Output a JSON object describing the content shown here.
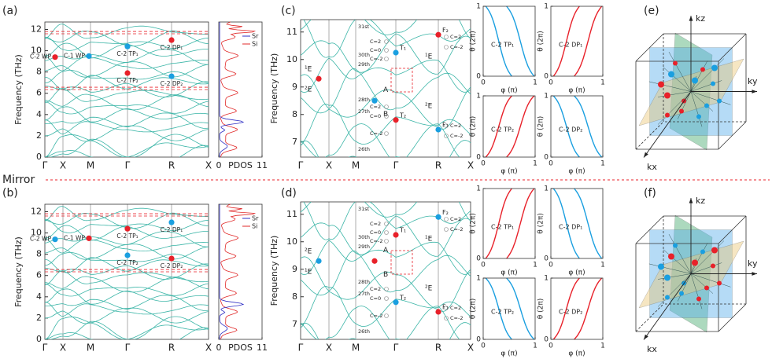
{
  "mirror": "Mirror",
  "panels": [
    {
      "label": "(a)",
      "band_structure": {
        "ylabel": "Frequency (THz)",
        "ylim": [
          0,
          12.7
        ],
        "yticks": [
          0,
          2,
          4,
          6,
          8,
          10,
          12
        ],
        "kpath": [
          "Γ",
          "X",
          "M",
          "Γ",
          "R",
          "X"
        ],
        "nodes": [
          {
            "label": "C-2 WP",
            "freq": 9.4,
            "color": "#e8212a"
          },
          {
            "label": "C-1 WP",
            "freq": 9.5,
            "color": "#1a9fe0"
          },
          {
            "label": "C-2 TP₁",
            "freq": 10.4,
            "color": "#1a9fe0"
          },
          {
            "label": "C-2 TP₂",
            "freq": 7.9,
            "color": "#e8212a"
          },
          {
            "label": "C-2 DP₁",
            "freq": 11.0,
            "color": "#e8212a"
          },
          {
            "label": "C-2 DP₂",
            "freq": 7.6,
            "color": "#1a9fe0"
          }
        ]
      },
      "pdos": {
        "xlabel": "PDOS",
        "xticks": [
          0,
          11
        ],
        "legend": [
          {
            "name": "Sr",
            "color": "#2e2ec4"
          },
          {
            "name": "Si",
            "color": "#e02828"
          }
        ]
      }
    },
    {
      "label": "(c)",
      "band_structure": {
        "ylabel": "Frequency (THz)",
        "ylim": [
          6.45,
          11.45
        ],
        "yticks": [
          7,
          8,
          9,
          10,
          11
        ],
        "kpath": [
          "Γ",
          "X",
          "M",
          "Γ",
          "R",
          "X"
        ],
        "nodes": [
          {
            "freq": 9.3,
            "color": "#e8212a"
          },
          {
            "freq": 8.5,
            "color": "#1a9fe0"
          },
          {
            "label": "T₁",
            "freq": 10.25,
            "color": "#1a9fe0"
          },
          {
            "label": "T₂",
            "freq": 7.8,
            "color": "#e8212a"
          },
          {
            "label": "F₂",
            "freq": 10.9,
            "color": "#e8212a"
          },
          {
            "label": "F₁",
            "freq": 7.45,
            "color": "#1a9fe0"
          }
        ],
        "annotations": [
          "¹E",
          "²E",
          "A",
          "B",
          "¹E",
          "²E",
          "31st",
          "30th",
          "29th",
          "28th",
          "27th",
          "26th",
          "C=2",
          "C=0",
          "C=-2",
          "C=2",
          "C=0",
          "C=-2",
          "C=2",
          "C=-2",
          "C=2",
          "C=-2"
        ]
      },
      "berry_phase": [
        {
          "title": "C-2 TP₁",
          "color": "#1a9fe0",
          "direction": "down",
          "xlabel": "φ (π)",
          "ylabel": "θ (2π)",
          "xticks": [
            0,
            1
          ],
          "yticks": [
            0,
            1
          ]
        },
        {
          "title": "C-2 DP₁",
          "color": "#e8212a",
          "direction": "up",
          "xlabel": "φ (π)",
          "ylabel": "θ (2π)",
          "xticks": [
            0,
            1
          ],
          "yticks": [
            0,
            1
          ]
        },
        {
          "title": "C-2 TP₂",
          "color": "#e8212a",
          "direction": "up",
          "xlabel": "φ (π)",
          "ylabel": "θ (2π)",
          "xticks": [
            0,
            1
          ],
          "yticks": [
            0,
            1
          ]
        },
        {
          "title": "C-2 DP₂",
          "color": "#1a9fe0",
          "direction": "down",
          "xlabel": "φ (π)",
          "ylabel": "θ (2π)",
          "xticks": [
            0,
            1
          ],
          "yticks": [
            0,
            1
          ]
        }
      ]
    },
    {
      "label": "(e)",
      "axes": [
        "kz",
        "ky",
        "kx"
      ]
    },
    {
      "label": "(b)",
      "band_structure": {
        "ylabel": "Frequency (THz)",
        "ylim": [
          0,
          12.7
        ],
        "yticks": [
          0,
          2,
          4,
          6,
          8,
          10,
          12
        ],
        "kpath": [
          "Γ",
          "X",
          "M",
          "Γ",
          "R",
          "X"
        ],
        "nodes": [
          {
            "label": "C-2 WP",
            "freq": 9.4,
            "color": "#1a9fe0"
          },
          {
            "label": "C-1 WP",
            "freq": 9.5,
            "color": "#e8212a"
          },
          {
            "label": "C-2 TP₁",
            "freq": 10.4,
            "color": "#e8212a"
          },
          {
            "label": "C-2 TP₂",
            "freq": 7.9,
            "color": "#1a9fe0"
          },
          {
            "label": "C-2 DP₁",
            "freq": 11.0,
            "color": "#1a9fe0"
          },
          {
            "label": "C-2 DP₂",
            "freq": 7.6,
            "color": "#e8212a"
          }
        ]
      },
      "pdos": {
        "xlabel": "PDOS",
        "xticks": [
          0,
          11
        ],
        "legend": [
          {
            "name": "Sr",
            "color": "#2e2ec4"
          },
          {
            "name": "Si",
            "color": "#e02828"
          }
        ]
      }
    },
    {
      "label": "(d)",
      "band_structure": {
        "ylabel": "Frequency (THz)",
        "ylim": [
          6.45,
          11.45
        ],
        "yticks": [
          7,
          8,
          9,
          10,
          11
        ],
        "kpath": [
          "Γ",
          "X",
          "M",
          "Γ",
          "R",
          "X"
        ],
        "nodes": [
          {
            "freq": 9.3,
            "color": "#1a9fe0"
          },
          {
            "freq": 9.3,
            "color": "#e8212a"
          },
          {
            "label": "T₁",
            "freq": 10.25,
            "color": "#e8212a"
          },
          {
            "label": "T₂",
            "freq": 7.8,
            "color": "#1a9fe0"
          },
          {
            "label": "F₂",
            "freq": 10.9,
            "color": "#1a9fe0"
          },
          {
            "label": "F₁",
            "freq": 7.45,
            "color": "#e8212a"
          }
        ],
        "annotations": [
          "²E",
          "¹E",
          "A",
          "B",
          "¹E",
          "²E",
          "31st",
          "30th",
          "29th",
          "28th",
          "27th",
          "26th",
          "C=2",
          "C=0",
          "C=-2",
          "C=2",
          "C=0",
          "C=-2",
          "C=2",
          "C=-2",
          "C=2",
          "C=-2"
        ]
      },
      "berry_phase": [
        {
          "title": "C-2 TP₁",
          "color": "#e8212a",
          "direction": "up",
          "xlabel": "φ (π)",
          "ylabel": "θ (2π)",
          "xticks": [
            0,
            1
          ],
          "yticks": [
            0,
            1
          ]
        },
        {
          "title": "C-2 DP₁",
          "color": "#1a9fe0",
          "direction": "down",
          "xlabel": "φ (π)",
          "ylabel": "θ (2π)",
          "xticks": [
            0,
            1
          ],
          "yticks": [
            0,
            1
          ]
        },
        {
          "title": "C-2 TP₂",
          "color": "#1a9fe0",
          "direction": "down",
          "xlabel": "φ (π)",
          "ylabel": "θ (2π)",
          "xticks": [
            0,
            1
          ],
          "yticks": [
            0,
            1
          ]
        },
        {
          "title": "C-2 DP₂",
          "color": "#e8212a",
          "direction": "up",
          "xlabel": "φ (π)",
          "ylabel": "θ (2π)",
          "xticks": [
            0,
            1
          ],
          "yticks": [
            0,
            1
          ]
        }
      ]
    },
    {
      "label": "(f)",
      "axes": [
        "kz",
        "ky",
        "kx"
      ]
    }
  ]
}
